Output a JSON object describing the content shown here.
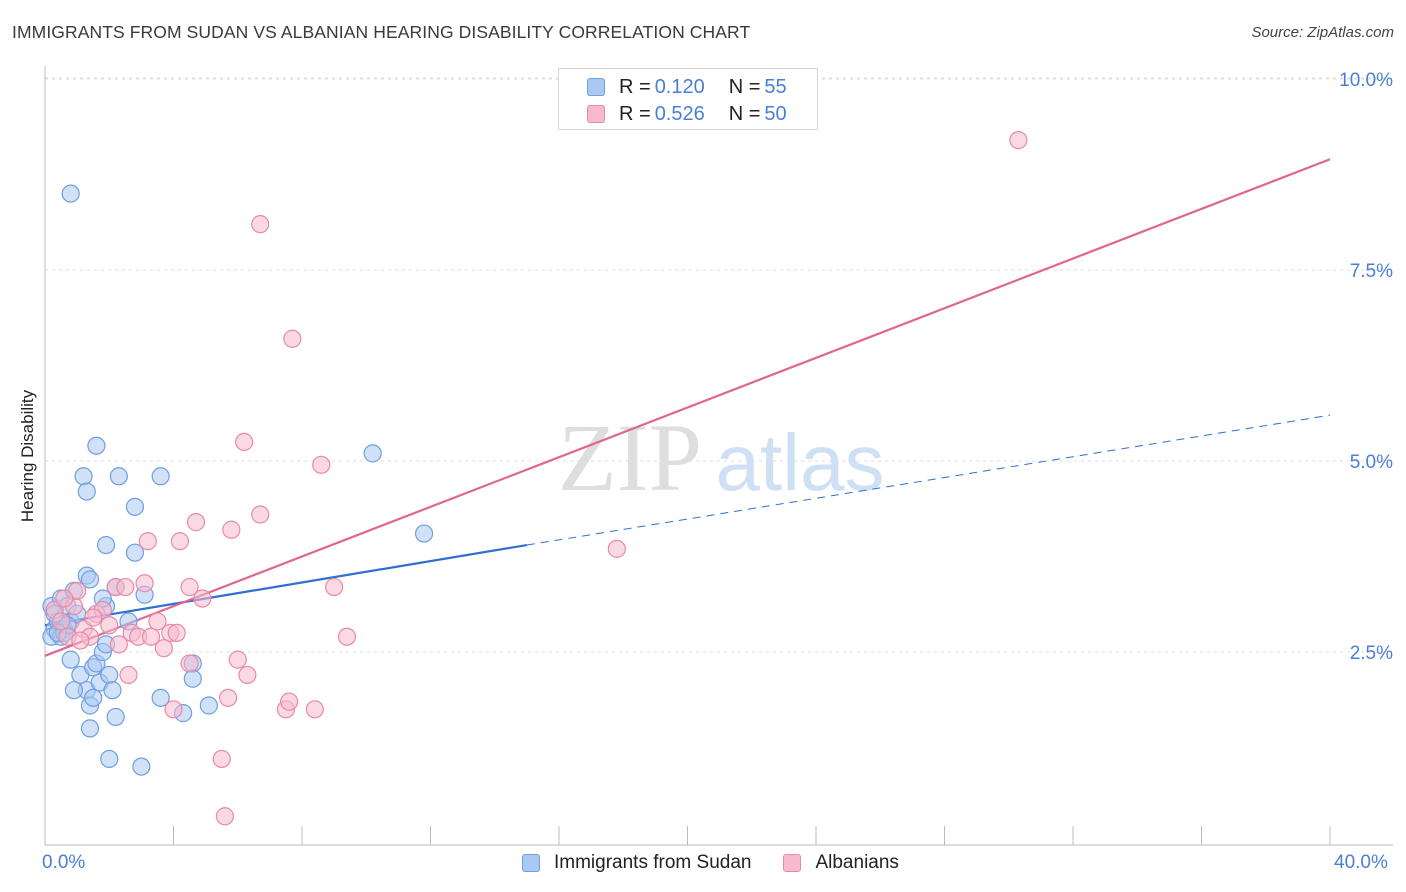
{
  "title": "IMMIGRANTS FROM SUDAN VS ALBANIAN HEARING DISABILITY CORRELATION CHART",
  "source": "Source: ZipAtlas.com",
  "watermark": {
    "zip": "ZIP",
    "atlas": "atlas"
  },
  "legend_top": [
    {
      "r_label": "R =",
      "r_value": "0.120",
      "n_label": "N =",
      "n_value": "55"
    },
    {
      "r_label": "R =",
      "r_value": "0.526",
      "n_label": "N =",
      "n_value": "50"
    }
  ],
  "colors": {
    "blue_fill": "#a9c8f2",
    "blue_stroke": "#6f9fe0",
    "blue_line": "#2f6fd0",
    "pink_fill": "#f7b9cc",
    "pink_stroke": "#e88aa8",
    "pink_line": "#e0668f",
    "axis_label": "#4a7fd4",
    "grid": "#dddddd"
  },
  "chart_data": {
    "type": "scatter",
    "title": "IMMIGRANTS FROM SUDAN VS ALBANIAN HEARING DISABILITY CORRELATION CHART",
    "xlabel": "",
    "ylabel": "Hearing Disability",
    "xlim": [
      0,
      40
    ],
    "ylim": [
      0,
      10.5
    ],
    "x_tick_labels": [
      "0.0%",
      "40.0%"
    ],
    "y_ticks": [
      2.5,
      5.0,
      7.5,
      10.0
    ],
    "y_tick_labels": [
      "2.5%",
      "5.0%",
      "7.5%",
      "10.0%"
    ],
    "series": [
      {
        "name": "Immigrants from Sudan",
        "color": "blue",
        "points": [
          [
            0.2,
            3.1
          ],
          [
            0.3,
            2.8
          ],
          [
            0.4,
            2.9
          ],
          [
            0.2,
            2.7
          ],
          [
            0.5,
            3.2
          ],
          [
            0.6,
            2.8
          ],
          [
            0.7,
            3.1
          ],
          [
            0.8,
            2.9
          ],
          [
            0.5,
            2.7
          ],
          [
            0.3,
            3.0
          ],
          [
            0.9,
            3.3
          ],
          [
            1.0,
            3.0
          ],
          [
            0.6,
            2.75
          ],
          [
            0.7,
            2.85
          ],
          [
            0.4,
            2.75
          ],
          [
            0.8,
            2.4
          ],
          [
            1.1,
            2.2
          ],
          [
            1.3,
            2.0
          ],
          [
            0.9,
            2.0
          ],
          [
            1.4,
            1.8
          ],
          [
            1.5,
            2.3
          ],
          [
            1.6,
            2.35
          ],
          [
            1.7,
            2.1
          ],
          [
            1.8,
            2.5
          ],
          [
            1.9,
            2.6
          ],
          [
            2.0,
            2.2
          ],
          [
            2.1,
            2.0
          ],
          [
            2.2,
            1.65
          ],
          [
            2.0,
            1.1
          ],
          [
            1.4,
            1.5
          ],
          [
            1.5,
            1.9
          ],
          [
            1.2,
            4.8
          ],
          [
            1.3,
            4.6
          ],
          [
            1.6,
            5.2
          ],
          [
            1.9,
            3.9
          ],
          [
            2.3,
            4.8
          ],
          [
            2.8,
            4.4
          ],
          [
            2.8,
            3.8
          ],
          [
            3.6,
            4.8
          ],
          [
            3.1,
            3.25
          ],
          [
            2.2,
            3.35
          ],
          [
            1.9,
            3.1
          ],
          [
            1.8,
            3.2
          ],
          [
            1.3,
            3.5
          ],
          [
            1.4,
            3.45
          ],
          [
            0.8,
            8.5
          ],
          [
            3.0,
            1.0
          ],
          [
            3.6,
            1.9
          ],
          [
            4.3,
            1.7
          ],
          [
            4.6,
            2.35
          ],
          [
            4.6,
            2.15
          ],
          [
            5.1,
            1.8
          ],
          [
            10.2,
            5.1
          ],
          [
            11.8,
            4.05
          ],
          [
            2.6,
            2.9
          ]
        ]
      },
      {
        "name": "Albanians",
        "color": "pink",
        "points": [
          [
            0.3,
            3.05
          ],
          [
            0.5,
            2.9
          ],
          [
            0.7,
            2.7
          ],
          [
            0.9,
            3.1
          ],
          [
            1.0,
            3.3
          ],
          [
            1.2,
            2.8
          ],
          [
            1.4,
            2.7
          ],
          [
            1.6,
            3.0
          ],
          [
            1.8,
            3.05
          ],
          [
            2.0,
            2.85
          ],
          [
            2.2,
            3.35
          ],
          [
            2.5,
            3.35
          ],
          [
            2.7,
            2.75
          ],
          [
            2.9,
            2.7
          ],
          [
            3.1,
            3.4
          ],
          [
            3.3,
            2.7
          ],
          [
            3.5,
            2.9
          ],
          [
            3.7,
            2.55
          ],
          [
            3.9,
            2.75
          ],
          [
            4.1,
            2.75
          ],
          [
            4.5,
            3.35
          ],
          [
            4.9,
            3.2
          ],
          [
            4.2,
            3.95
          ],
          [
            4.7,
            4.2
          ],
          [
            5.8,
            4.1
          ],
          [
            6.0,
            2.4
          ],
          [
            6.3,
            2.2
          ],
          [
            3.2,
            3.95
          ],
          [
            2.6,
            2.2
          ],
          [
            4.5,
            2.35
          ],
          [
            5.7,
            1.9
          ],
          [
            6.2,
            5.25
          ],
          [
            6.7,
            4.3
          ],
          [
            7.5,
            1.75
          ],
          [
            7.6,
            1.85
          ],
          [
            8.4,
            1.75
          ],
          [
            8.6,
            4.95
          ],
          [
            9.0,
            3.35
          ],
          [
            9.4,
            2.7
          ],
          [
            6.7,
            8.1
          ],
          [
            7.7,
            6.6
          ],
          [
            5.5,
            1.1
          ],
          [
            5.6,
            0.35
          ],
          [
            4.0,
            1.75
          ],
          [
            17.8,
            3.85
          ],
          [
            30.3,
            9.2
          ],
          [
            1.1,
            2.65
          ],
          [
            2.3,
            2.6
          ],
          [
            0.6,
            3.2
          ],
          [
            1.5,
            2.95
          ]
        ]
      }
    ],
    "trend_lines": [
      {
        "series": "Immigrants from Sudan",
        "solid_from": [
          0,
          2.85
        ],
        "solid_to": [
          15,
          3.9
        ],
        "dashed_to": [
          40,
          5.6
        ]
      },
      {
        "series": "Albanians",
        "from": [
          0,
          2.45
        ],
        "to": [
          40,
          8.95
        ]
      }
    ]
  },
  "legend_bottom": [
    {
      "label": "Immigrants from Sudan"
    },
    {
      "label": "Albanians"
    }
  ]
}
